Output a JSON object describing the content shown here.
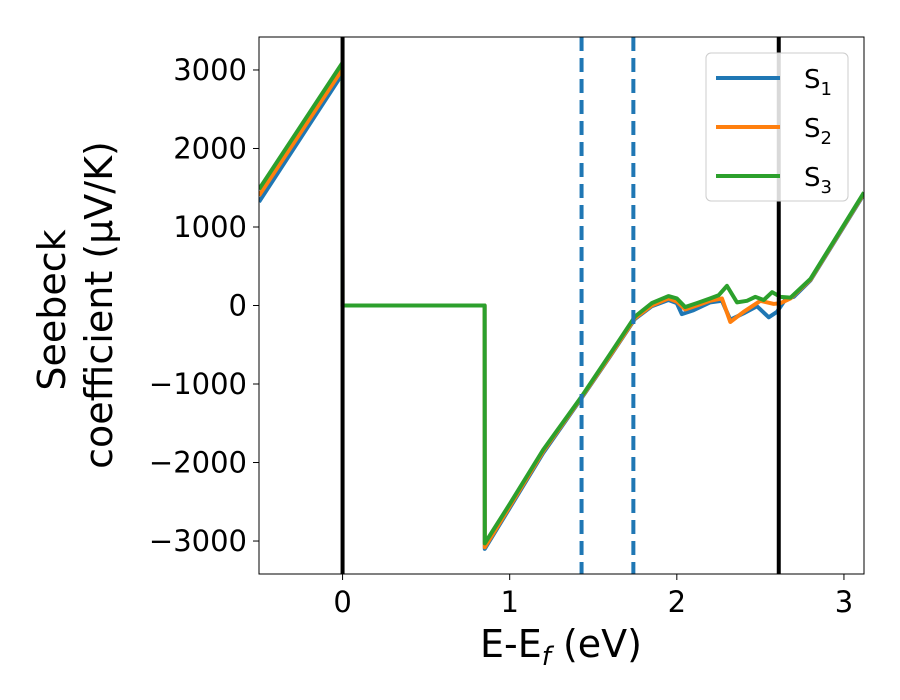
{
  "chart_data": {
    "type": "line",
    "xlabel": "E-E_f (eV)",
    "ylabel_lines": [
      "Seebeck",
      "coefficient  (μV/K)"
    ],
    "xlim": [
      -0.5,
      3.12
    ],
    "ylim": [
      -3420,
      3420
    ],
    "xticks": [
      0,
      1,
      2,
      3
    ],
    "yticks": [
      -3000,
      -2000,
      -1000,
      0,
      1000,
      2000,
      3000
    ],
    "legend_position": "upper right",
    "grid": false,
    "series": [
      {
        "name": "S1",
        "color": "#1f77b4",
        "points": [
          [
            -0.5,
            1320
          ],
          [
            -0.001,
            2950
          ],
          [
            0.0,
            0
          ],
          [
            0.85,
            0
          ],
          [
            0.851,
            -3100
          ],
          [
            1.0,
            -2580
          ],
          [
            1.2,
            -1880
          ],
          [
            1.43,
            -1180
          ],
          [
            1.6,
            -650
          ],
          [
            1.75,
            -170
          ],
          [
            1.85,
            -10
          ],
          [
            1.95,
            70
          ],
          [
            2.0,
            30
          ],
          [
            2.03,
            -110
          ],
          [
            2.1,
            -60
          ],
          [
            2.2,
            40
          ],
          [
            2.27,
            60
          ],
          [
            2.32,
            -180
          ],
          [
            2.4,
            -100
          ],
          [
            2.48,
            -10
          ],
          [
            2.55,
            -150
          ],
          [
            2.6,
            -80
          ],
          [
            2.65,
            80
          ],
          [
            2.7,
            110
          ],
          [
            2.8,
            320
          ],
          [
            3.12,
            1420
          ]
        ]
      },
      {
        "name": "S2",
        "color": "#ff7f0e",
        "points": [
          [
            -0.5,
            1400
          ],
          [
            -0.001,
            3010
          ],
          [
            0.0,
            0
          ],
          [
            0.85,
            0
          ],
          [
            0.851,
            -3080
          ],
          [
            1.0,
            -2560
          ],
          [
            1.2,
            -1860
          ],
          [
            1.43,
            -1170
          ],
          [
            1.6,
            -640
          ],
          [
            1.75,
            -160
          ],
          [
            1.85,
            0
          ],
          [
            1.95,
            90
          ],
          [
            2.0,
            50
          ],
          [
            2.05,
            -50
          ],
          [
            2.12,
            0
          ],
          [
            2.2,
            60
          ],
          [
            2.27,
            90
          ],
          [
            2.32,
            -210
          ],
          [
            2.4,
            -80
          ],
          [
            2.5,
            60
          ],
          [
            2.58,
            20
          ],
          [
            2.62,
            30
          ],
          [
            2.68,
            90
          ],
          [
            2.8,
            330
          ],
          [
            3.12,
            1430
          ]
        ]
      },
      {
        "name": "S3",
        "color": "#2ca02c",
        "points": [
          [
            -0.5,
            1480
          ],
          [
            -0.001,
            3090
          ],
          [
            0.0,
            0
          ],
          [
            0.85,
            0
          ],
          [
            0.851,
            -3030
          ],
          [
            1.0,
            -2530
          ],
          [
            1.2,
            -1840
          ],
          [
            1.43,
            -1160
          ],
          [
            1.6,
            -620
          ],
          [
            1.75,
            -140
          ],
          [
            1.85,
            30
          ],
          [
            1.95,
            120
          ],
          [
            2.0,
            90
          ],
          [
            2.05,
            -20
          ],
          [
            2.12,
            30
          ],
          [
            2.2,
            90
          ],
          [
            2.25,
            130
          ],
          [
            2.3,
            250
          ],
          [
            2.36,
            40
          ],
          [
            2.42,
            60
          ],
          [
            2.47,
            110
          ],
          [
            2.52,
            70
          ],
          [
            2.57,
            170
          ],
          [
            2.62,
            110
          ],
          [
            2.68,
            100
          ],
          [
            2.8,
            340
          ],
          [
            3.12,
            1440
          ]
        ]
      }
    ],
    "vlines": [
      {
        "x": 0.0,
        "style": "solid",
        "color": "#000000"
      },
      {
        "x": 2.61,
        "style": "solid",
        "color": "#000000"
      },
      {
        "x": 1.43,
        "style": "dashed",
        "color": "#1f77b4"
      },
      {
        "x": 1.74,
        "style": "dashed",
        "color": "#1f77b4"
      }
    ]
  }
}
